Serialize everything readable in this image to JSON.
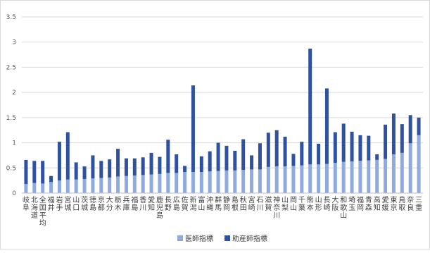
{
  "chart_data": {
    "type": "bar",
    "stacked": true,
    "title": "",
    "xlabel": "",
    "ylabel": "",
    "ylim": [
      0,
      3.5
    ],
    "yticks": [
      0,
      0.5,
      1,
      1.5,
      2,
      2.5,
      3,
      3.5
    ],
    "gridlines": true,
    "legend_position": "bottom",
    "categories": [
      "岐阜",
      "北海道",
      "全国平均",
      "福井",
      "岩手",
      "宮城",
      "山口",
      "茨城",
      "徳島",
      "京都",
      "大分",
      "栃木",
      "兵庫",
      "福島",
      "香川",
      "愛知",
      "鹿児島",
      "長野",
      "広島",
      "佐賀",
      "新潟",
      "富山",
      "沖縄",
      "群馬",
      "静岡",
      "島根",
      "秋田",
      "宮崎",
      "石川",
      "滋賀",
      "神奈川",
      "山梨",
      "岡山",
      "千葉",
      "熊本",
      "山形",
      "長崎",
      "大阪",
      "和歌山",
      "埼玉",
      "福岡",
      "青森",
      "高知",
      "愛媛",
      "東京",
      "鳥取",
      "奈良",
      "三重"
    ],
    "series": [
      {
        "name": "医師指標",
        "color": "#8faadc",
        "values": [
          0.18,
          0.2,
          0.19,
          0.22,
          0.25,
          0.27,
          0.27,
          0.28,
          0.29,
          0.3,
          0.31,
          0.33,
          0.34,
          0.35,
          0.36,
          0.37,
          0.38,
          0.4,
          0.4,
          0.42,
          0.42,
          0.42,
          0.43,
          0.44,
          0.45,
          0.45,
          0.46,
          0.47,
          0.47,
          0.52,
          0.53,
          0.53,
          0.54,
          0.55,
          0.57,
          0.57,
          0.58,
          0.6,
          0.62,
          0.63,
          0.64,
          0.65,
          0.66,
          0.68,
          0.77,
          0.8,
          0.99,
          1.15
        ]
      },
      {
        "name": "助産師指標",
        "color": "#2f52a0",
        "values": [
          0.48,
          0.44,
          0.45,
          0.12,
          0.77,
          0.94,
          0.34,
          0.25,
          0.46,
          0.34,
          0.36,
          0.55,
          0.35,
          0.34,
          0.35,
          0.43,
          0.34,
          0.66,
          0.37,
          0.12,
          1.72,
          0.31,
          0.4,
          0.56,
          0.49,
          0.39,
          0.61,
          0.28,
          0.52,
          0.68,
          0.72,
          0.59,
          0.24,
          0.47,
          2.3,
          0.41,
          1.5,
          0.61,
          0.76,
          0.59,
          0.51,
          0.49,
          0.11,
          0.68,
          0.81,
          0.57,
          0.56,
          0.35
        ]
      }
    ]
  }
}
